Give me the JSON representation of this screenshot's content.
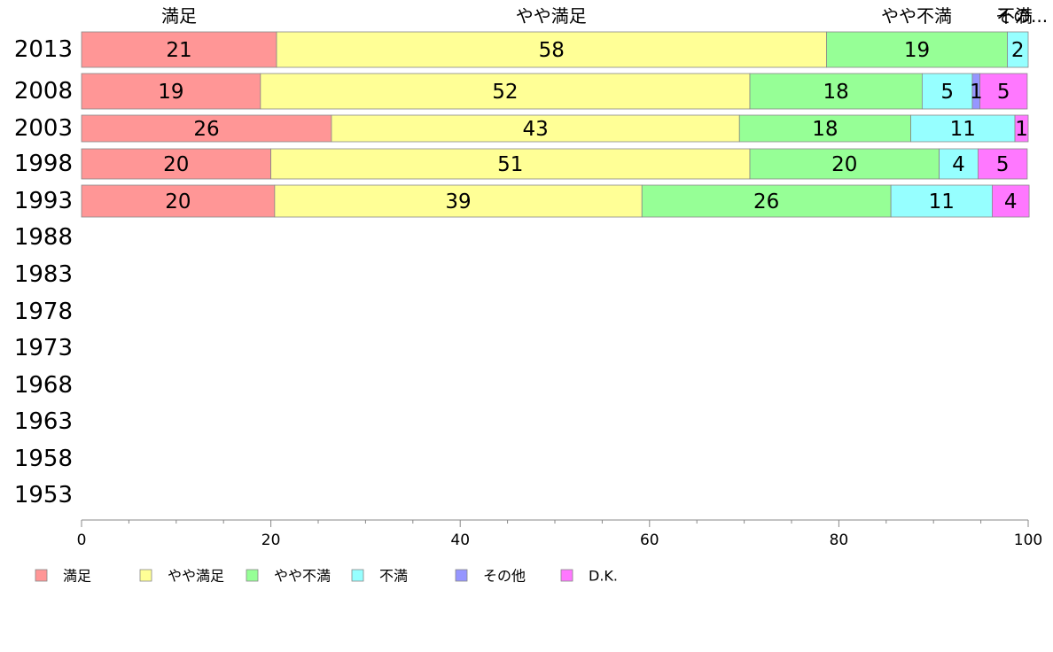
{
  "chart_data": {
    "type": "bar",
    "orientation": "horizontal",
    "stacked": true,
    "xlim": [
      0,
      100
    ],
    "x_ticks": [
      "0",
      "20",
      "40",
      "60",
      "80",
      "100"
    ],
    "categories": [
      "2013",
      "2008",
      "2003",
      "1998",
      "1993",
      "1988",
      "1983",
      "1978",
      "1973",
      "1968",
      "1963",
      "1958",
      "1953"
    ],
    "series": [
      {
        "name": "満足",
        "color": "#ff9696",
        "values": [
          20.6,
          18.9,
          26.4,
          20.0,
          20.4,
          null,
          null,
          null,
          null,
          null,
          null,
          null,
          null
        ]
      },
      {
        "name": "やや満足",
        "color": "#ffff96",
        "values": [
          58.1,
          51.7,
          43.1,
          50.6,
          38.8,
          null,
          null,
          null,
          null,
          null,
          null,
          null,
          null
        ]
      },
      {
        "name": "やや不満",
        "color": "#96ff96",
        "values": [
          19.1,
          18.2,
          18.1,
          20.0,
          26.3,
          null,
          null,
          null,
          null,
          null,
          null,
          null,
          null
        ]
      },
      {
        "name": "不満",
        "color": "#96ffff",
        "values": [
          2.2,
          5.3,
          11.0,
          4.1,
          10.7,
          null,
          null,
          null,
          null,
          null,
          null,
          null,
          null
        ]
      },
      {
        "name": "その他",
        "color": "#9696ff",
        "values": [
          0,
          0.8,
          0,
          0,
          0,
          null,
          null,
          null,
          null,
          null,
          null,
          null,
          null
        ]
      },
      {
        "name": "D.K.",
        "color": "#ff78ff",
        "values": [
          0,
          5.0,
          1.4,
          5.2,
          3.9,
          null,
          null,
          null,
          null,
          null,
          null,
          null,
          null
        ]
      }
    ],
    "labels": [
      [
        "21",
        "58",
        "19",
        "2",
        "",
        ""
      ],
      [
        "19",
        "52",
        "18",
        "5",
        "1",
        "5"
      ],
      [
        "26",
        "43",
        "18",
        "11",
        "",
        "1"
      ],
      [
        "20",
        "51",
        "20",
        "4",
        "",
        "5"
      ],
      [
        "20",
        "39",
        "26",
        "11",
        "",
        "4"
      ]
    ],
    "top_labels": [
      {
        "text": "満足",
        "at": 10.3
      },
      {
        "text": "やや満足",
        "at": 49.6
      },
      {
        "text": "やや不満",
        "at": 88.2
      },
      {
        "text": "不満",
        "at": 98.6
      },
      {
        "text": "その...",
        "at": 99.3
      }
    ],
    "legend_position": "bottom-left",
    "grid": false
  }
}
